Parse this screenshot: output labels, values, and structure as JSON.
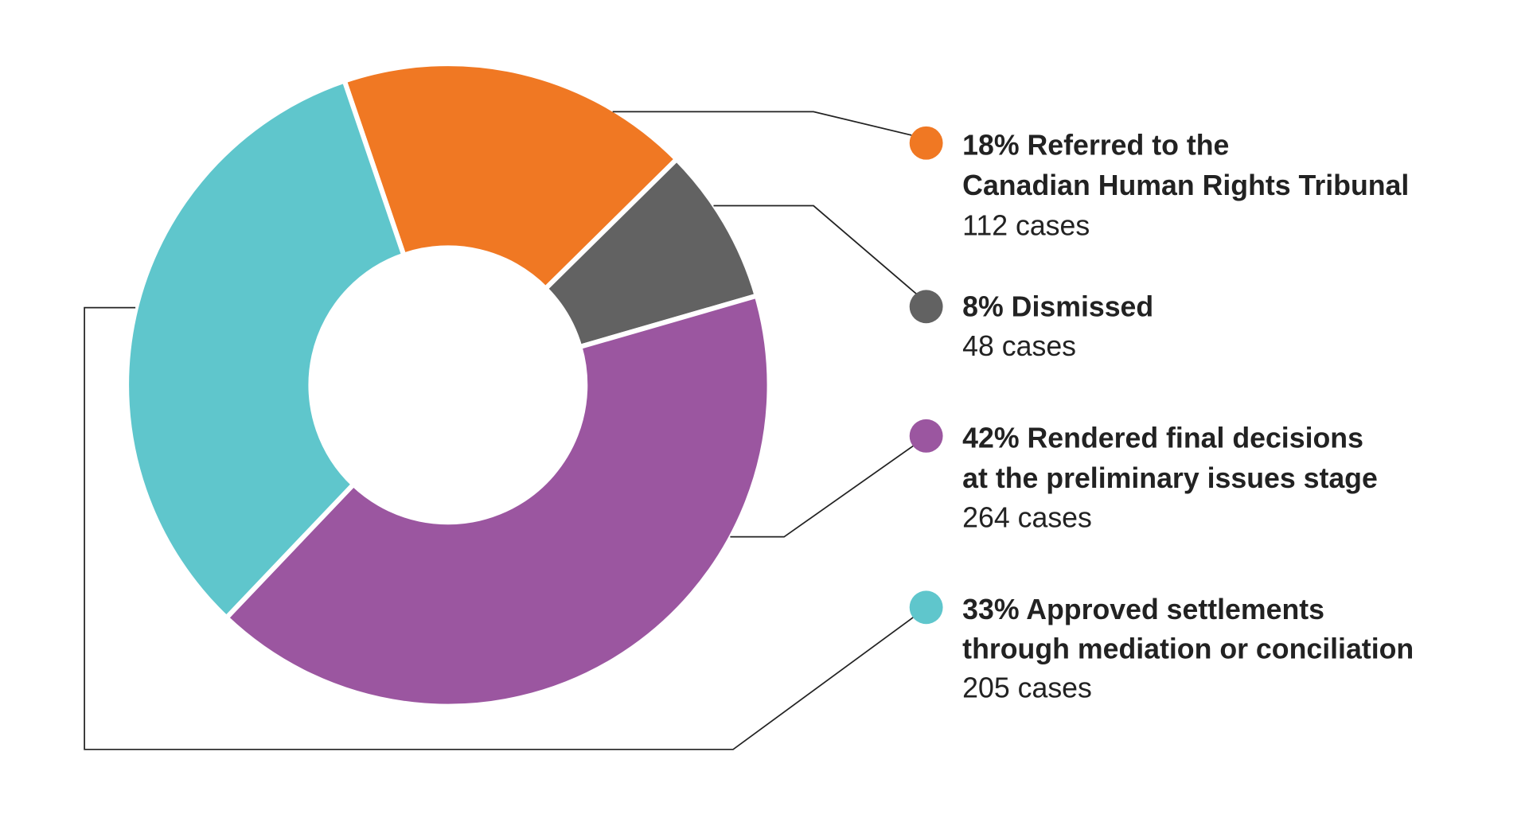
{
  "chart_data": {
    "type": "pie",
    "donut": true,
    "start": "top, counter-clockwise offset so the orange slice starts left of top",
    "slices": [
      {
        "label_lines": [
          "18% Referred to the",
          "Canadian Human Rights Tribunal"
        ],
        "percent": 18,
        "cases_text": "112 cases",
        "value": 112,
        "color": "#F07823"
      },
      {
        "label_lines": [
          "8% Dismissed"
        ],
        "percent": 8,
        "cases_text": "48 cases",
        "value": 48,
        "color": "#626262"
      },
      {
        "label_lines": [
          "42% Rendered final decisions",
          "at the preliminary issues stage"
        ],
        "percent": 42,
        "cases_text": "264 cases",
        "value": 264,
        "color": "#9B56A0"
      },
      {
        "label_lines": [
          "33% Approved settlements",
          "through mediation or conciliation"
        ],
        "percent": 33,
        "cases_text": "205 cases",
        "value": 205,
        "color": "#5FC6CC"
      }
    ],
    "legend_placement": "right"
  }
}
